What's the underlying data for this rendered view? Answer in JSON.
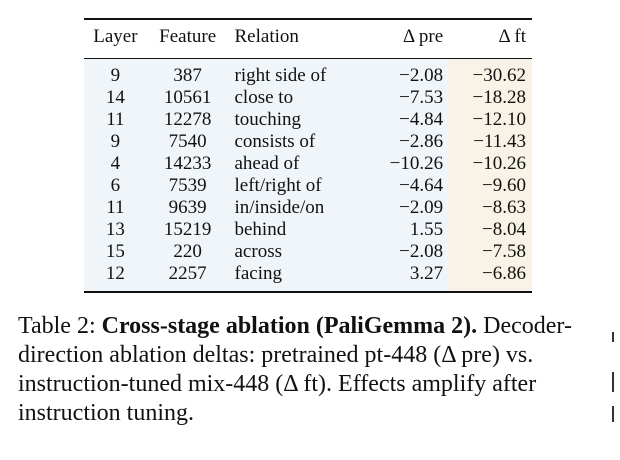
{
  "table": {
    "headers": [
      "Layer",
      "Feature",
      "Relation",
      "Δ pre",
      "Δ ft"
    ],
    "rows": [
      [
        "9",
        "387",
        "right side of",
        "−2.08",
        "−30.62"
      ],
      [
        "14",
        "10561",
        "close to",
        "−7.53",
        "−18.28"
      ],
      [
        "11",
        "12278",
        "touching",
        "−4.84",
        "−12.10"
      ],
      [
        "9",
        "7540",
        "consists of",
        "−2.86",
        "−11.43"
      ],
      [
        "4",
        "14233",
        "ahead of",
        "−10.26",
        "−10.26"
      ],
      [
        "6",
        "7539",
        "left/right of",
        "−4.64",
        "−9.60"
      ],
      [
        "11",
        "9639",
        "in/inside/on",
        "−2.09",
        "−8.63"
      ],
      [
        "13",
        "15219",
        "behind",
        "1.55",
        "−8.04"
      ],
      [
        "15",
        "220",
        "across",
        "−2.08",
        "−7.58"
      ],
      [
        "12",
        "2257",
        "facing",
        "3.27",
        "−6.86"
      ]
    ]
  },
  "caption": {
    "label": "Table 2:",
    "title": "Cross-stage ablation (PaliGemma 2).",
    "body": "Decoder-direction ablation deltas: pretrained pt-448 (Δ pre) vs. instruction-tuned mix-448 (Δ ft). Effects amplify after instruction tuning."
  },
  "colors": {
    "shade_main": "#f0f5fa",
    "shade_ft": "#f8f3e6"
  }
}
